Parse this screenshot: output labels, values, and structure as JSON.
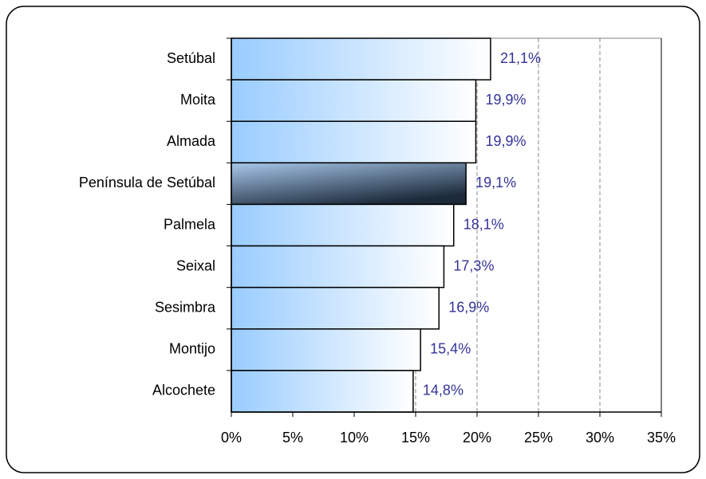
{
  "chart_data": {
    "type": "hbar",
    "categories": [
      "Setúbal",
      "Moita",
      "Almada",
      "Península de Setúbal",
      "Palmela",
      "Seixal",
      "Sesimbra",
      "Montijo",
      "Alcochete"
    ],
    "values": [
      21.1,
      19.9,
      19.9,
      19.1,
      18.1,
      17.3,
      16.9,
      15.4,
      14.8
    ],
    "value_labels": [
      "21,1%",
      "19,9%",
      "19,9%",
      "19,1%",
      "18,1%",
      "17,3%",
      "16,9%",
      "15,4%",
      "14,8%"
    ],
    "colors": [
      "#99ccff",
      "#99ccff",
      "#99ccff",
      "#1c2a3a",
      "#99ccff",
      "#99ccff",
      "#99ccff",
      "#99ccff",
      "#99ccff"
    ],
    "label_color": "#333399",
    "xlim": [
      0,
      35
    ],
    "xticks": [
      {
        "value": 0,
        "label": "0%"
      },
      {
        "value": 5,
        "label": "5%"
      },
      {
        "value": 10,
        "label": "10%"
      },
      {
        "value": 15,
        "label": "15%"
      },
      {
        "value": 20,
        "label": "20%"
      },
      {
        "value": 25,
        "label": "25%"
      },
      {
        "value": 30,
        "label": "30%"
      },
      {
        "value": 35,
        "label": "35%"
      }
    ],
    "grid": true
  }
}
